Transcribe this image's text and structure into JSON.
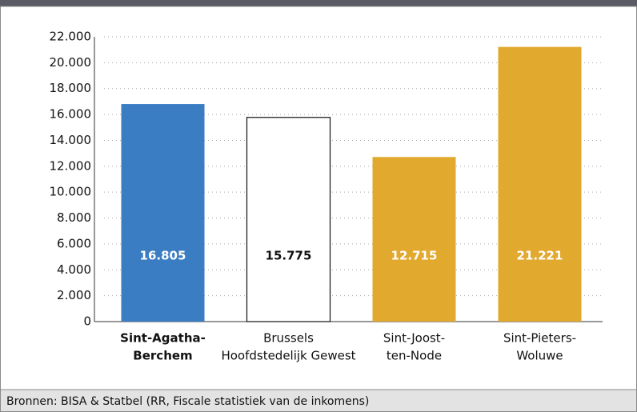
{
  "chart_data": {
    "type": "bar",
    "categories": [
      [
        "Sint-Agatha-",
        "Berchem"
      ],
      [
        "Brussels",
        "Hoofdstedelijk Gewest"
      ],
      [
        "Sint-Joost-",
        "ten-Node"
      ],
      [
        "Sint-Pieters-",
        "Woluwe"
      ]
    ],
    "values": [
      16805,
      15775,
      12715,
      21221
    ],
    "value_labels": [
      "16.805",
      "15.775",
      "12.715",
      "21.221"
    ],
    "colors": [
      "#3a7dc2",
      "#ffffff",
      "#e2a92f",
      "#e2a92f"
    ],
    "highlight_category": 0,
    "ylim": [
      0,
      22000
    ],
    "yticks": [
      0,
      {
        "value": 2000,
        "label": "2.000"
      },
      {
        "value": 4000,
        "label": "4.000"
      },
      {
        "value": 6000,
        "label": "6.000"
      },
      {
        "value": 8000,
        "label": "8.000"
      },
      {
        "value": 10000,
        "label": "10.000"
      },
      {
        "value": 12000,
        "label": "12.000"
      },
      {
        "value": 14000,
        "label": "14.000"
      },
      {
        "value": 16000,
        "label": "16.000"
      },
      {
        "value": 18000,
        "label": "18.000"
      },
      {
        "value": 20000,
        "label": "20.000"
      },
      {
        "value": 22000,
        "label": "22.000"
      }
    ],
    "grid": true,
    "source": "Bronnen: BISA & Statbel (RR, Fiscale statistiek van de inkomens)"
  }
}
